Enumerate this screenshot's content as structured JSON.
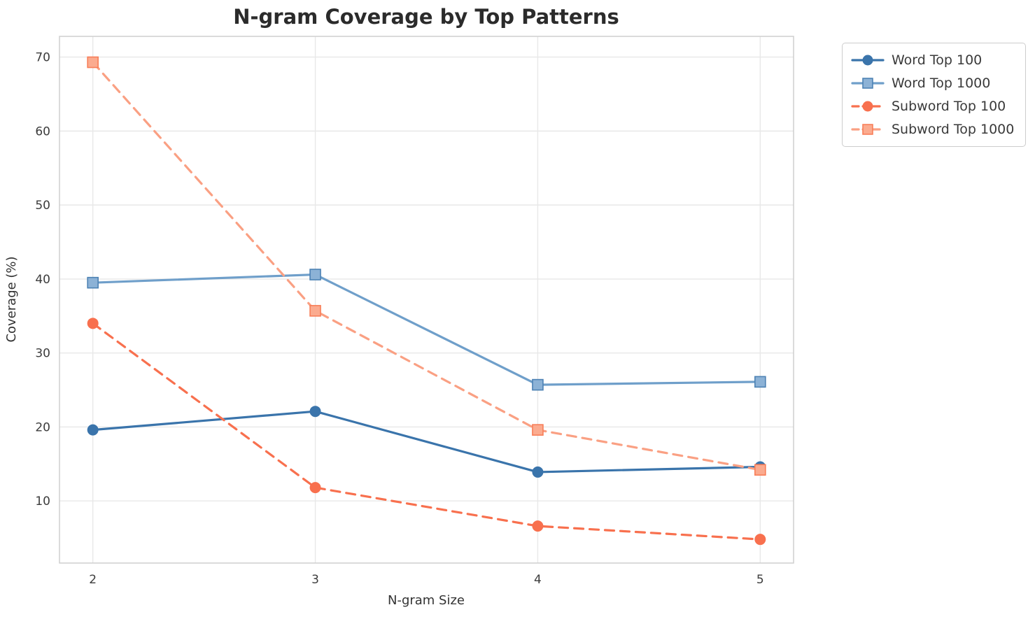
{
  "title": "N-gram Coverage by Top Patterns",
  "chart_data": {
    "type": "line",
    "title": "N-gram Coverage by Top Patterns",
    "xlabel": "N-gram Size",
    "ylabel": "Coverage (%)",
    "x": [
      2,
      3,
      4,
      5
    ],
    "x_tick_labels": [
      "2",
      "3",
      "4",
      "5"
    ],
    "y_ticks": [
      10,
      20,
      30,
      40,
      50,
      60,
      70
    ],
    "xlim": [
      1.85,
      5.15
    ],
    "ylim": [
      1.6,
      72.8
    ],
    "grid": true,
    "legend_position": "outside-top-right",
    "series": [
      {
        "name": "Word Top 100",
        "values": [
          19.6,
          22.1,
          13.9,
          14.6
        ],
        "color": "#3a74ab",
        "marker": "circle",
        "marker_fill": "#3a74ab",
        "marker_edge": "#3a74ab",
        "linestyle": "solid"
      },
      {
        "name": "Word Top 1000",
        "values": [
          39.5,
          40.6,
          25.7,
          26.1
        ],
        "color": "#6f9fca",
        "marker": "square",
        "marker_fill": "#8cb2d6",
        "marker_edge": "#4d82b4",
        "linestyle": "solid"
      },
      {
        "name": "Subword Top 100",
        "values": [
          34.0,
          11.8,
          6.6,
          4.8
        ],
        "color": "#f8704e",
        "marker": "circle",
        "marker_fill": "#f8704e",
        "marker_edge": "#f8704e",
        "linestyle": "dashed"
      },
      {
        "name": "Subword Top 1000",
        "values": [
          69.3,
          35.7,
          19.6,
          14.2
        ],
        "color": "#faa083",
        "marker": "square",
        "marker_fill": "#fbab8f",
        "marker_edge": "#f87e58",
        "linestyle": "dashed"
      }
    ]
  },
  "style_colors": {
    "grid": "#e8e8e8",
    "spine": "#cfcfcf",
    "tick_text": "#3c3c3c",
    "axis_label_text": "#333333",
    "title_text": "#2b2b2b"
  }
}
